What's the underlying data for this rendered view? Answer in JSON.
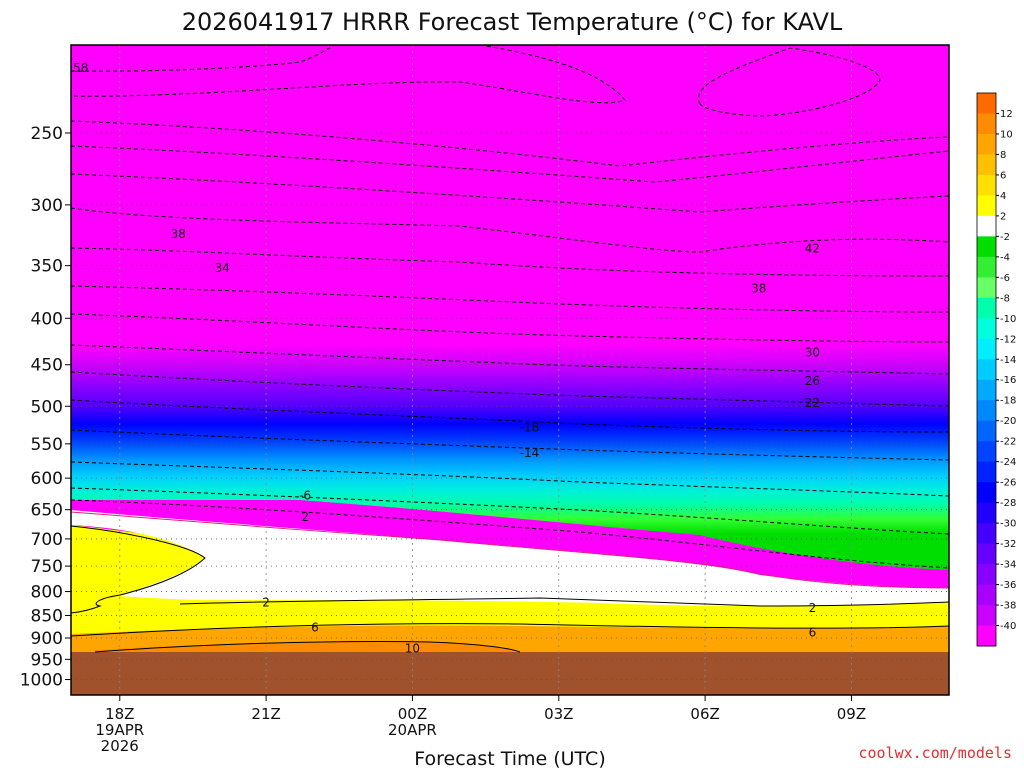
{
  "chart_data": {
    "type": "heatmap",
    "title": "2026041917 HRRR Forecast Temperature (°C) for KAVL",
    "xlabel": "Forecast Time (UTC)",
    "ylabel": "",
    "x_ticks": [
      {
        "hour": 18,
        "lines": [
          "18Z",
          "19APR",
          "2026"
        ]
      },
      {
        "hour": 21,
        "lines": [
          "21Z"
        ]
      },
      {
        "hour": 24,
        "lines": [
          "00Z",
          "20APR"
        ]
      },
      {
        "hour": 27,
        "lines": [
          "03Z"
        ]
      },
      {
        "hour": 30,
        "lines": [
          "06Z"
        ]
      },
      {
        "hour": 33,
        "lines": [
          "09Z"
        ]
      }
    ],
    "xlim": [
      17,
      35
    ],
    "y_ticks": [
      250,
      300,
      350,
      400,
      450,
      500,
      550,
      600,
      650,
      700,
      750,
      800,
      850,
      900,
      950,
      1000
    ],
    "ylim": [
      200,
      1040
    ],
    "y_scale": "log",
    "grid": true,
    "colorbar": {
      "labels": [
        "12",
        "10",
        "8",
        "6",
        "4",
        "2",
        "-2",
        "-4",
        "-6",
        "-8",
        "-10",
        "-12",
        "-14",
        "-16",
        "-18",
        "-20",
        "-22",
        "-24",
        "-26",
        "-28",
        "-30",
        "-32",
        "-34",
        "-36",
        "-38",
        "-40"
      ],
      "colors": [
        "#ff6a00",
        "#ff8c00",
        "#ffa500",
        "#ffc000",
        "#ffe000",
        "#ffff00",
        "#ffffff",
        "#00dd00",
        "#33ee33",
        "#66ff66",
        "#00ffaa",
        "#00ffdd",
        "#00eeff",
        "#00ccff",
        "#00aaff",
        "#0088ff",
        "#0066ff",
        "#0044ff",
        "#0022ff",
        "#0000ff",
        "#2200ff",
        "#4400ff",
        "#6600ff",
        "#8800ff",
        "#aa00ff",
        "#cc00ff",
        "#ff00ff"
      ]
    },
    "ground": {
      "color": "#a0522d"
    },
    "contour_labels": [
      {
        "text": "58",
        "hour": 17.2,
        "p": 212
      },
      {
        "text": "38",
        "hour": 19.2,
        "p": 323
      },
      {
        "text": "34",
        "hour": 20.1,
        "p": 352
      },
      {
        "text": "42",
        "hour": 32.2,
        "p": 335
      },
      {
        "text": "38",
        "hour": 31.1,
        "p": 371
      },
      {
        "text": "30",
        "hour": 32.2,
        "p": 436
      },
      {
        "text": "26",
        "hour": 32.2,
        "p": 469
      },
      {
        "text": "22",
        "hour": 32.2,
        "p": 496
      },
      {
        "text": "-18",
        "hour": 26.4,
        "p": 528
      },
      {
        "text": "-14",
        "hour": 26.4,
        "p": 563
      },
      {
        "text": "-6",
        "hour": 21.8,
        "p": 627
      },
      {
        "text": "2",
        "hour": 21.8,
        "p": 662
      },
      {
        "text": "2",
        "hour": 21.0,
        "p": 822
      },
      {
        "text": "2",
        "hour": 32.2,
        "p": 834
      },
      {
        "text": "6",
        "hour": 22.0,
        "p": 876
      },
      {
        "text": "6",
        "hour": 32.2,
        "p": 888
      },
      {
        "text": "10",
        "hour": 24.0,
        "p": 924
      }
    ],
    "credit": "coolwx.com/models"
  }
}
